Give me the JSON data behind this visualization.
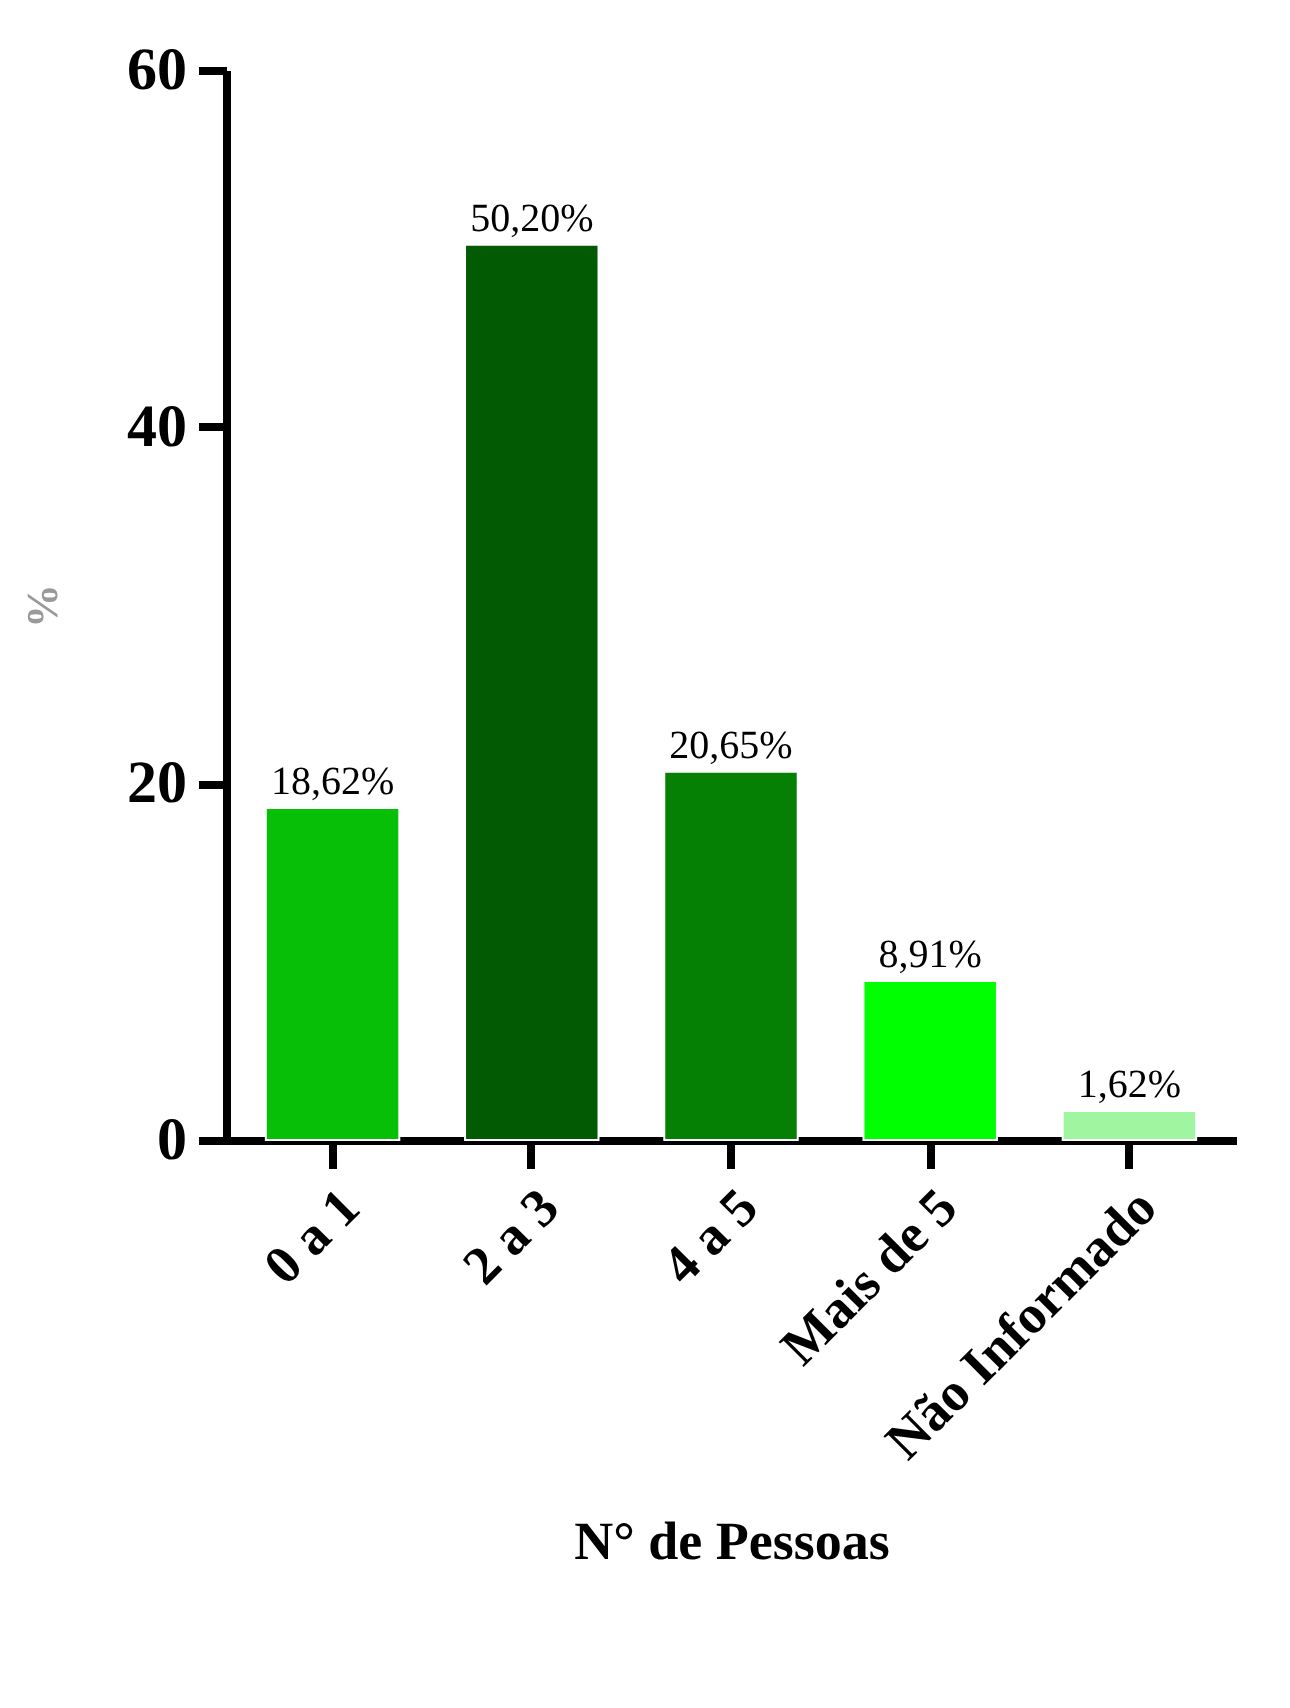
{
  "chart_data": {
    "type": "bar",
    "xlabel": "N° de Pessoas",
    "ylabel": "%",
    "categories": [
      "0 a 1",
      "2 a 3",
      "4 a 5",
      "Mais de 5",
      "Não Informado"
    ],
    "values": [
      18.62,
      50.2,
      20.65,
      8.91,
      1.62
    ],
    "colors": [
      "#06bf06",
      "#025a02",
      "#058005",
      "#00ff00",
      "#a0f5a0"
    ],
    "value_labels": [
      "18,62%",
      "50,20%",
      "20,65%",
      "8,91%",
      "1,62%"
    ],
    "ylim": [
      0,
      60
    ],
    "yticks": [
      0,
      20,
      40,
      60
    ],
    "grid": false
  }
}
